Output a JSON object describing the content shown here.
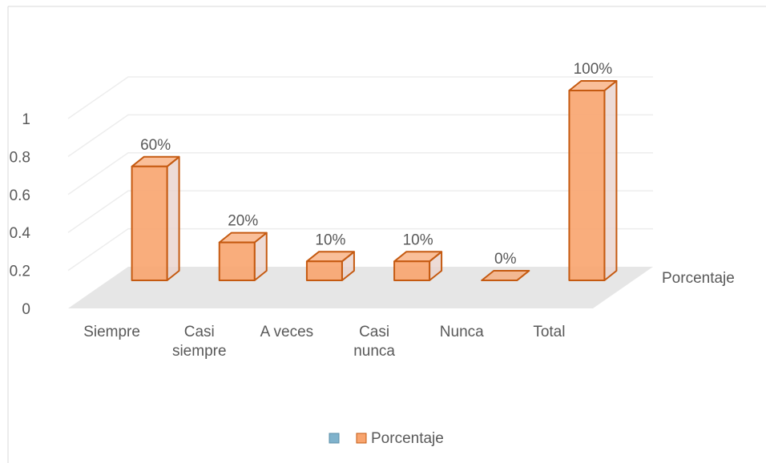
{
  "chart_data": {
    "type": "bar3d",
    "categories": [
      "Siempre",
      "Casi siempre",
      "A veces",
      "Casi nunca",
      "Nunca",
      "Total"
    ],
    "series": [
      {
        "name": "Porcentaje",
        "color": "#f8a46e",
        "values": [
          0.6,
          0.2,
          0.1,
          0.1,
          0,
          1
        ],
        "value_labels": [
          "60%",
          "20%",
          "10%",
          "10%",
          "0%",
          "100%"
        ]
      }
    ],
    "ylim": [
      0,
      1
    ],
    "yticks": [
      0,
      0.2,
      0.4,
      0.6,
      0.8,
      1
    ],
    "grid": true,
    "legend": "bottom"
  }
}
